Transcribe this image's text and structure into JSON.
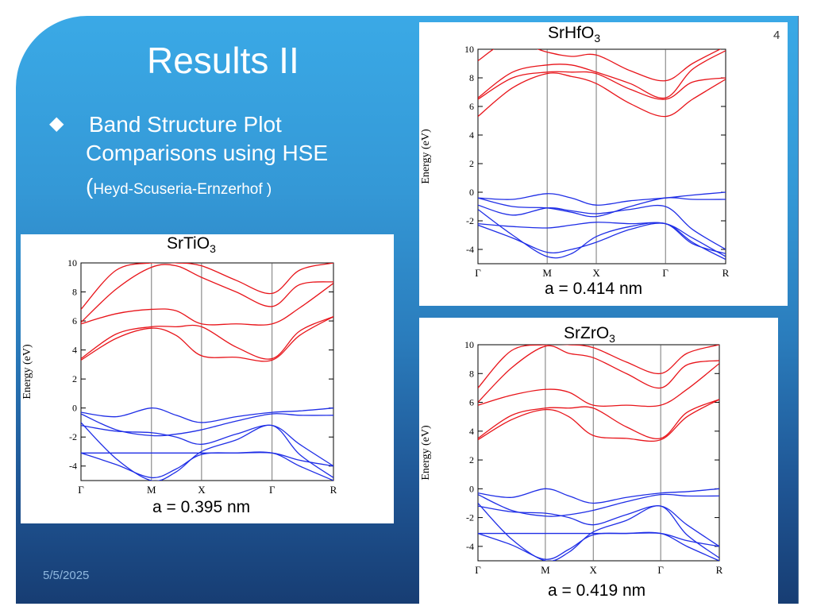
{
  "slide": {
    "title": "Results II",
    "bullet_icon": "diamond",
    "bullet_line1": "Band Structure Plot",
    "bullet_line2": "Comparisons using HSE",
    "bullet_line3_open": "(",
    "bullet_line3_text": "Heyd-Scuseria-Ernzerhof )",
    "date": "5/5/2025",
    "page_number": "4"
  },
  "figures": {
    "srhfo3": {
      "formula": "SrHfO",
      "subscript": "3",
      "lattice": "a = 0.414 nm"
    },
    "srtio3": {
      "formula": "SrTiO",
      "subscript": "3",
      "lattice": "a = 0.395 nm"
    },
    "srzro3": {
      "formula": "SrZrO",
      "subscript": "3",
      "lattice": "a = 0.419 nm"
    }
  },
  "colors": {
    "conduction": "#e8141a",
    "valence": "#1f2ee6"
  },
  "chart_data": [
    {
      "type": "line",
      "id": "srhfo3",
      "ylabel": "Energy (eV)",
      "ylim": [
        -5,
        10
      ],
      "yticks": [
        -4,
        -2,
        0,
        2,
        4,
        6,
        8,
        10
      ],
      "xticks": [
        "Γ",
        "M",
        "X",
        "Γ",
        "R"
      ],
      "kpath": [
        0,
        1,
        1.71,
        2.71,
        3.58
      ],
      "series": [
        {
          "band": "conduction",
          "x": [
            0,
            0.5,
            1,
            1.35,
            1.71,
            2.2,
            2.71,
            3.1,
            3.58
          ],
          "values": [
            5.3,
            7.3,
            8.3,
            8.1,
            7.6,
            6.2,
            5.3,
            6.5,
            7.9
          ]
        },
        {
          "band": "conduction",
          "x": [
            0,
            0.5,
            1,
            1.35,
            1.71,
            2.2,
            2.71,
            3.1,
            3.58
          ],
          "values": [
            6.5,
            8.0,
            8.4,
            8.4,
            8.3,
            7.2,
            6.5,
            7.7,
            8.0
          ]
        },
        {
          "band": "conduction",
          "x": [
            0,
            0.5,
            1,
            1.35,
            1.71,
            2.2,
            2.71,
            3.1,
            3.58
          ],
          "values": [
            6.6,
            8.4,
            8.9,
            8.9,
            8.4,
            7.6,
            6.6,
            8.6,
            9.9
          ]
        },
        {
          "band": "conduction",
          "x": [
            0,
            0.45,
            1,
            1.35,
            1.71,
            2.2,
            2.71,
            3.1,
            3.58
          ],
          "values": [
            9.2,
            10.5,
            9.8,
            9.5,
            9.6,
            8.5,
            7.8,
            9.0,
            10.2
          ]
        },
        {
          "band": "valence",
          "x": [
            0,
            0.5,
            1,
            1.35,
            1.71,
            2.2,
            2.71,
            3.1,
            3.58
          ],
          "values": [
            -0.4,
            -0.5,
            -0.1,
            -0.4,
            -0.9,
            -0.6,
            -0.4,
            -0.2,
            0.0
          ]
        },
        {
          "band": "valence",
          "x": [
            0,
            0.5,
            1,
            1.35,
            1.71,
            2.2,
            2.71,
            3.1,
            3.58
          ],
          "values": [
            -0.4,
            -1.0,
            -1.1,
            -1.4,
            -1.7,
            -1.0,
            -0.4,
            -0.5,
            -0.5
          ]
        },
        {
          "band": "valence",
          "x": [
            0,
            0.5,
            1,
            1.35,
            1.71,
            2.2,
            2.71,
            3.1,
            3.58
          ],
          "values": [
            -0.9,
            -1.6,
            -1.1,
            -1.3,
            -1.5,
            -1.2,
            -1.0,
            -2.6,
            -4.0
          ]
        },
        {
          "band": "valence",
          "x": [
            0,
            0.5,
            1,
            1.35,
            1.71,
            2.2,
            2.71,
            3.1,
            3.58
          ],
          "values": [
            -2.2,
            -2.4,
            -2.5,
            -2.3,
            -2.1,
            -2.2,
            -2.2,
            -3.2,
            -4.5
          ]
        },
        {
          "band": "valence",
          "x": [
            0,
            0.5,
            1,
            1.35,
            1.71,
            2.2,
            2.71,
            3.1,
            3.58
          ],
          "values": [
            -2.3,
            -3.2,
            -4.2,
            -4.0,
            -3.5,
            -2.6,
            -2.2,
            -3.5,
            -4.7
          ]
        },
        {
          "band": "valence",
          "x": [
            0,
            0.5,
            1,
            1.35,
            1.71,
            2.2,
            2.71,
            3.1,
            3.58
          ],
          "values": [
            -1.2,
            -3.0,
            -4.5,
            -4.3,
            -3.1,
            -2.4,
            -2.2,
            -3.6,
            -4.3
          ]
        }
      ]
    },
    {
      "type": "line",
      "id": "srtio3",
      "ylabel": "Energy (eV)",
      "ylim": [
        -5,
        10
      ],
      "yticks": [
        -4,
        -2,
        0,
        2,
        4,
        6,
        8,
        10
      ],
      "xticks": [
        "Γ",
        "M",
        "X",
        "Γ",
        "R"
      ],
      "kpath": [
        0,
        1,
        1.71,
        2.71,
        3.58
      ],
      "series": [
        {
          "band": "conduction",
          "x": [
            0,
            0.5,
            1,
            1.35,
            1.71,
            2.2,
            2.71,
            3.1,
            3.58
          ],
          "values": [
            3.3,
            4.8,
            5.5,
            5.0,
            3.6,
            3.5,
            3.3,
            5.0,
            6.3
          ]
        },
        {
          "band": "conduction",
          "x": [
            0,
            0.5,
            1,
            1.35,
            1.71,
            2.2,
            2.71,
            3.1,
            3.58
          ],
          "values": [
            3.4,
            5.1,
            5.6,
            5.6,
            5.6,
            4.2,
            3.4,
            5.3,
            6.3
          ]
        },
        {
          "band": "conduction",
          "x": [
            0,
            0.5,
            1,
            1.35,
            1.71,
            2.2,
            2.71,
            3.1,
            3.58
          ],
          "values": [
            5.8,
            6.5,
            6.8,
            6.7,
            5.8,
            5.8,
            5.8,
            6.9,
            8.6
          ]
        },
        {
          "band": "conduction",
          "x": [
            0,
            0.5,
            1,
            1.35,
            1.71,
            2.2,
            2.71,
            3.1,
            3.58
          ],
          "values": [
            5.9,
            8.2,
            9.7,
            9.8,
            9.0,
            8.0,
            7.0,
            8.5,
            8.7
          ]
        },
        {
          "band": "conduction",
          "x": [
            0,
            0.5,
            1,
            1.35,
            1.71,
            2.2,
            2.71,
            3.1,
            3.58
          ],
          "values": [
            6.8,
            9.5,
            10.0,
            10.0,
            9.8,
            8.8,
            7.9,
            9.5,
            10.0
          ]
        },
        {
          "band": "valence",
          "x": [
            0,
            0.5,
            1,
            1.35,
            1.71,
            2.2,
            2.71,
            3.1,
            3.58
          ],
          "values": [
            -0.3,
            -0.6,
            0.0,
            -0.5,
            -1.0,
            -0.6,
            -0.3,
            -0.2,
            0.0
          ]
        },
        {
          "band": "valence",
          "x": [
            0,
            0.5,
            1,
            1.35,
            1.71,
            2.2,
            2.71,
            3.1,
            3.58
          ],
          "values": [
            -0.4,
            -1.5,
            -1.9,
            -1.8,
            -1.5,
            -0.9,
            -0.4,
            -0.5,
            -0.5
          ]
        },
        {
          "band": "valence",
          "x": [
            0,
            0.5,
            1,
            1.35,
            1.71,
            2.2,
            2.71,
            3.1,
            3.58
          ],
          "values": [
            -1.2,
            -1.6,
            -1.7,
            -2.0,
            -2.5,
            -1.8,
            -1.2,
            -2.5,
            -4.0
          ]
        },
        {
          "band": "valence",
          "x": [
            0,
            0.5,
            1,
            1.35,
            1.71,
            2.2,
            2.71,
            3.1,
            3.58
          ],
          "values": [
            -3.1,
            -3.1,
            -3.1,
            -3.1,
            -3.1,
            -3.1,
            -3.1,
            -3.6,
            -4.0
          ]
        },
        {
          "band": "valence",
          "x": [
            0,
            0.5,
            1,
            1.35,
            1.71,
            2.2,
            2.71,
            3.1,
            3.58
          ],
          "values": [
            -1.0,
            -3.5,
            -5.0,
            -4.4,
            -3.0,
            -2.2,
            -1.2,
            -3.2,
            -4.8
          ]
        },
        {
          "band": "valence",
          "x": [
            0,
            0.5,
            1,
            1.35,
            1.71,
            2.2,
            2.71,
            3.1,
            3.58
          ],
          "values": [
            -3.1,
            -3.9,
            -4.8,
            -4.2,
            -3.2,
            -3.1,
            -3.1,
            -4.0,
            -5.0
          ]
        }
      ]
    },
    {
      "type": "line",
      "id": "srzro3",
      "ylabel": "Energy (eV)",
      "ylim": [
        -5,
        10
      ],
      "yticks": [
        -4,
        -2,
        0,
        2,
        4,
        6,
        8,
        10
      ],
      "xticks": [
        "Γ",
        "M",
        "X",
        "Γ",
        "R"
      ],
      "kpath": [
        0,
        1,
        1.71,
        2.71,
        3.58
      ],
      "series": [
        {
          "band": "conduction",
          "x": [
            0,
            0.5,
            1,
            1.35,
            1.71,
            2.2,
            2.71,
            3.1,
            3.58
          ],
          "values": [
            3.4,
            4.8,
            5.5,
            5.0,
            3.7,
            3.5,
            3.4,
            5.0,
            6.2
          ]
        },
        {
          "band": "conduction",
          "x": [
            0,
            0.5,
            1,
            1.35,
            1.71,
            2.2,
            2.71,
            3.1,
            3.58
          ],
          "values": [
            3.5,
            5.1,
            5.6,
            5.6,
            5.6,
            4.3,
            3.5,
            5.3,
            6.2
          ]
        },
        {
          "band": "conduction",
          "x": [
            0,
            0.5,
            1,
            1.35,
            1.71,
            2.2,
            2.71,
            3.1,
            3.58
          ],
          "values": [
            5.8,
            6.5,
            6.9,
            6.7,
            5.8,
            5.8,
            5.8,
            6.9,
            8.7
          ]
        },
        {
          "band": "conduction",
          "x": [
            0,
            0.5,
            1,
            1.35,
            1.71,
            2.2,
            2.71,
            3.1,
            3.58
          ],
          "values": [
            6.0,
            8.4,
            9.9,
            9.4,
            9.1,
            8.0,
            7.0,
            8.6,
            8.9
          ]
        },
        {
          "band": "conduction",
          "x": [
            0,
            0.5,
            1,
            1.35,
            1.71,
            2.2,
            2.71,
            3.1,
            3.58
          ],
          "values": [
            7.0,
            9.6,
            10.0,
            10.0,
            9.8,
            8.8,
            8.0,
            9.4,
            10.0
          ]
        },
        {
          "band": "valence",
          "x": [
            0,
            0.5,
            1,
            1.35,
            1.71,
            2.2,
            2.71,
            3.1,
            3.58
          ],
          "values": [
            -0.3,
            -0.6,
            0.0,
            -0.5,
            -1.0,
            -0.6,
            -0.3,
            -0.2,
            0.0
          ]
        },
        {
          "band": "valence",
          "x": [
            0,
            0.5,
            1,
            1.35,
            1.71,
            2.2,
            2.71,
            3.1,
            3.58
          ],
          "values": [
            -0.4,
            -1.5,
            -1.9,
            -1.8,
            -1.5,
            -0.9,
            -0.4,
            -0.5,
            -0.5
          ]
        },
        {
          "band": "valence",
          "x": [
            0,
            0.5,
            1,
            1.35,
            1.71,
            2.2,
            2.71,
            3.1,
            3.58
          ],
          "values": [
            -1.2,
            -1.6,
            -1.7,
            -2.0,
            -2.5,
            -1.8,
            -1.2,
            -2.5,
            -4.0
          ]
        },
        {
          "band": "valence",
          "x": [
            0,
            0.5,
            1,
            1.35,
            1.71,
            2.2,
            2.71,
            3.1,
            3.58
          ],
          "values": [
            -3.1,
            -3.1,
            -3.1,
            -3.1,
            -3.1,
            -3.1,
            -3.1,
            -3.6,
            -4.0
          ]
        },
        {
          "band": "valence",
          "x": [
            0,
            0.5,
            1,
            1.35,
            1.71,
            2.2,
            2.71,
            3.1,
            3.58
          ],
          "values": [
            -1.0,
            -3.5,
            -5.0,
            -4.4,
            -3.0,
            -2.2,
            -1.2,
            -3.2,
            -4.8
          ]
        },
        {
          "band": "valence",
          "x": [
            0,
            0.5,
            1,
            1.35,
            1.71,
            2.2,
            2.71,
            3.1,
            3.58
          ],
          "values": [
            -3.1,
            -3.9,
            -4.9,
            -4.2,
            -3.2,
            -3.1,
            -3.1,
            -4.0,
            -5.0
          ]
        }
      ]
    }
  ]
}
